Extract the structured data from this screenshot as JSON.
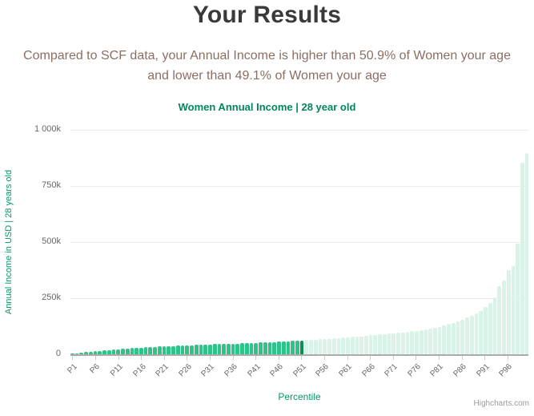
{
  "header": {
    "title": "Your Results",
    "subtitle_line1": "Compared to SCF data, your Annual Income is higher than 50.9% of Women your age",
    "subtitle_line2": "and lower than 49.1% of Women your age"
  },
  "chart": {
    "title": "Women Annual Income | 28 year old",
    "x_axis_title": "Percentile",
    "y_axis_title": "Annual Income in USD | 28 years old",
    "credit": "Highcharts.com"
  },
  "chart_data": {
    "type": "bar",
    "title": "Women Annual Income | 28 year old",
    "xlabel": "Percentile",
    "ylabel": "Annual Income in USD | 28 years old",
    "ylim": [
      0,
      1000000
    ],
    "grid": "on",
    "legend": "off",
    "n_bars": 100,
    "y_tick_values": [
      0,
      250000,
      500000,
      750000,
      1000000
    ],
    "y_tick_labels": [
      "0",
      "250k",
      "500k",
      "750k",
      "1 000k"
    ],
    "x_tick_step": 5,
    "x_tick_labels": [
      "P1",
      "P6",
      "P11",
      "P16",
      "P21",
      "P26",
      "P31",
      "P36",
      "P41",
      "P46",
      "P51",
      "P56",
      "P61",
      "P66",
      "P71",
      "P76",
      "P81",
      "P86",
      "P91",
      "P96"
    ],
    "values_thousands_usd": [
      3,
      5,
      7,
      9,
      11,
      13,
      15,
      17,
      19,
      21,
      23,
      24,
      26,
      27,
      28,
      30,
      31,
      32,
      33,
      34,
      35,
      36,
      37,
      38,
      39,
      40,
      41,
      42,
      43,
      43,
      44,
      45,
      45,
      46,
      47,
      47,
      48,
      49,
      50,
      50,
      51,
      52,
      53,
      54,
      55,
      56,
      57,
      58,
      59,
      60,
      62,
      63,
      64,
      65,
      67,
      68,
      69,
      71,
      72,
      74,
      75,
      77,
      78,
      80,
      82,
      84,
      86,
      88,
      90,
      92,
      94,
      96,
      98,
      100,
      102,
      104,
      107,
      110,
      114,
      118,
      123,
      128,
      134,
      140,
      147,
      155,
      163,
      172,
      182,
      194,
      209,
      230,
      255,
      302,
      327,
      374,
      392,
      494,
      855,
      898
    ],
    "user_percentile": 51,
    "colors": {
      "bar_below_user": "#2ec487",
      "bar_user": "#0a8f55",
      "bar_above_user": "#d9f3e6",
      "gridline": "#ececec",
      "axis_line": "#ababab",
      "axis_text": "#666666",
      "green_text": "#009a68",
      "chart_title_text": "#00875f",
      "subtitle_text": "#8d6e63",
      "title_text": "#3a3a3a"
    }
  }
}
